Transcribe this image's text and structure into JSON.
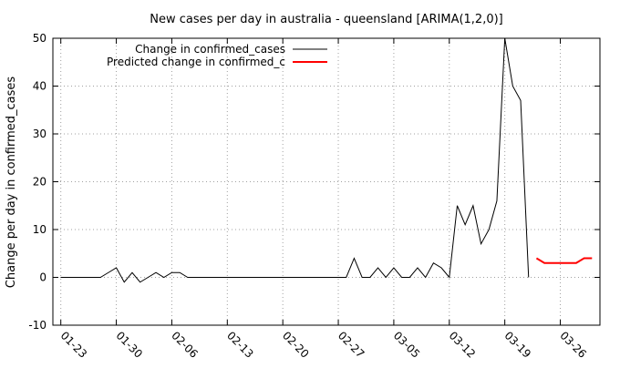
{
  "chart_data": {
    "type": "line",
    "title": "New cases per day in australia - queensland [ARIMA(1,2,0)]",
    "xlabel": "",
    "ylabel": "Change per day in confirmed_cases",
    "ylim": [
      -10,
      50
    ],
    "yticks": [
      -10,
      0,
      10,
      20,
      30,
      40,
      50
    ],
    "xlim": [
      "2020-01-22",
      "2020-03-31"
    ],
    "xticks": [
      "01-23",
      "01-30",
      "02-06",
      "02-13",
      "02-20",
      "02-27",
      "03-05",
      "03-12",
      "03-19",
      "03-26"
    ],
    "xtick_dates": [
      "2020-01-23",
      "2020-01-30",
      "2020-02-06",
      "2020-02-13",
      "2020-02-20",
      "2020-02-27",
      "2020-03-05",
      "2020-03-12",
      "2020-03-19",
      "2020-03-26"
    ],
    "grid": true,
    "legend_position": "top-left",
    "series": [
      {
        "name": "Change in confirmed_cases",
        "color": "#000000",
        "points": [
          [
            "2020-01-23",
            0
          ],
          [
            "2020-01-24",
            0
          ],
          [
            "2020-01-25",
            0
          ],
          [
            "2020-01-26",
            0
          ],
          [
            "2020-01-27",
            0
          ],
          [
            "2020-01-28",
            0
          ],
          [
            "2020-01-29",
            1
          ],
          [
            "2020-01-30",
            2
          ],
          [
            "2020-01-31",
            -1
          ],
          [
            "2020-02-01",
            1
          ],
          [
            "2020-02-02",
            -1
          ],
          [
            "2020-02-03",
            0
          ],
          [
            "2020-02-04",
            1
          ],
          [
            "2020-02-05",
            0
          ],
          [
            "2020-02-06",
            1
          ],
          [
            "2020-02-07",
            1
          ],
          [
            "2020-02-08",
            0
          ],
          [
            "2020-02-09",
            0
          ],
          [
            "2020-02-10",
            0
          ],
          [
            "2020-02-11",
            0
          ],
          [
            "2020-02-12",
            0
          ],
          [
            "2020-02-13",
            0
          ],
          [
            "2020-02-14",
            0
          ],
          [
            "2020-02-15",
            0
          ],
          [
            "2020-02-16",
            0
          ],
          [
            "2020-02-17",
            0
          ],
          [
            "2020-02-18",
            0
          ],
          [
            "2020-02-19",
            0
          ],
          [
            "2020-02-20",
            0
          ],
          [
            "2020-02-21",
            0
          ],
          [
            "2020-02-22",
            0
          ],
          [
            "2020-02-23",
            0
          ],
          [
            "2020-02-24",
            0
          ],
          [
            "2020-02-25",
            0
          ],
          [
            "2020-02-26",
            0
          ],
          [
            "2020-02-27",
            0
          ],
          [
            "2020-02-28",
            0
          ],
          [
            "2020-02-29",
            4
          ],
          [
            "2020-03-01",
            0
          ],
          [
            "2020-03-02",
            0
          ],
          [
            "2020-03-03",
            2
          ],
          [
            "2020-03-04",
            0
          ],
          [
            "2020-03-05",
            2
          ],
          [
            "2020-03-06",
            0
          ],
          [
            "2020-03-07",
            0
          ],
          [
            "2020-03-08",
            2
          ],
          [
            "2020-03-09",
            0
          ],
          [
            "2020-03-10",
            3
          ],
          [
            "2020-03-11",
            2
          ],
          [
            "2020-03-12",
            0
          ],
          [
            "2020-03-13",
            15
          ],
          [
            "2020-03-14",
            11
          ],
          [
            "2020-03-15",
            15
          ],
          [
            "2020-03-16",
            7
          ],
          [
            "2020-03-17",
            10
          ],
          [
            "2020-03-18",
            16
          ],
          [
            "2020-03-19",
            50
          ],
          [
            "2020-03-20",
            40
          ],
          [
            "2020-03-21",
            37
          ],
          [
            "2020-03-22",
            0
          ]
        ]
      },
      {
        "name": "Predicted change in confirmed_c",
        "color": "#ff0000",
        "points": [
          [
            "2020-03-23",
            4
          ],
          [
            "2020-03-24",
            3
          ],
          [
            "2020-03-25",
            3
          ],
          [
            "2020-03-26",
            3
          ],
          [
            "2020-03-27",
            3
          ],
          [
            "2020-03-28",
            3
          ],
          [
            "2020-03-29",
            4
          ],
          [
            "2020-03-30",
            4
          ]
        ]
      }
    ]
  }
}
